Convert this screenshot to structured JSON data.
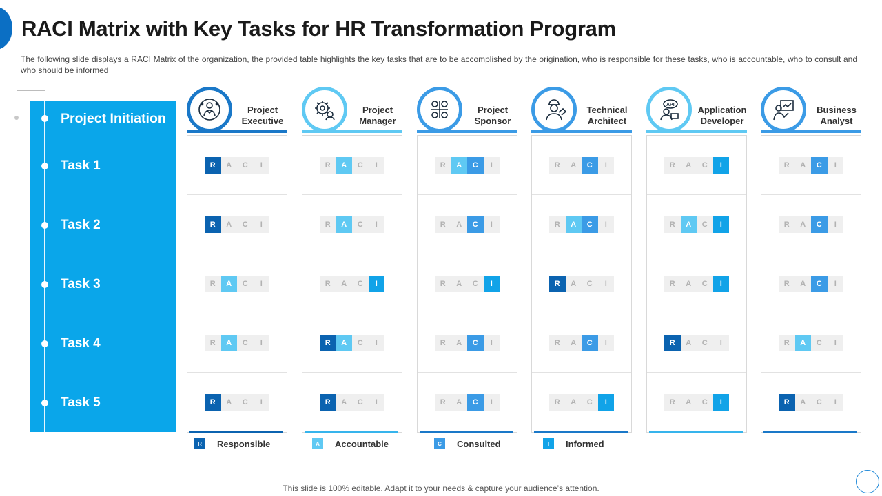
{
  "title": "RACI Matrix with Key Tasks for HR Transformation Program",
  "subtitle": "The following slide displays a RACI Matrix of the organization, the provided table highlights the key tasks that are to be accomplished by the origination, who is responsible for these tasks, who is accountable, who to consult and who should be informed",
  "tasks": {
    "header": "Project Initiation",
    "items": [
      "Task 1",
      "Task 2",
      "Task 3",
      "Task 4",
      "Task 5"
    ]
  },
  "raci_letters": [
    "R",
    "A",
    "C",
    "I"
  ],
  "colors": {
    "R": "#0b63b0",
    "A": "#5fc9f3",
    "C": "#3b9be6",
    "I": "#11a3e8",
    "panel": "#0aa6ea"
  },
  "roles": [
    {
      "name": "Project Executive",
      "line1": "Project",
      "line2": "Executive",
      "icon": "executive-icon",
      "accent": "#1a78c8",
      "bottom": "#0b63b0",
      "cells": [
        [
          "R"
        ],
        [
          "R"
        ],
        [
          "A"
        ],
        [
          "A"
        ],
        [
          "R"
        ]
      ]
    },
    {
      "name": "Project Manager",
      "line1": "Project",
      "line2": "Manager",
      "icon": "gear-person-icon",
      "accent": "#5fc9f3",
      "bottom": "#36b4ec",
      "cells": [
        [
          "A"
        ],
        [
          "A"
        ],
        [
          "I"
        ],
        [
          "R",
          "A"
        ],
        [
          "R"
        ]
      ]
    },
    {
      "name": "Project Sponsor",
      "line1": "Project",
      "line2": "Sponsor",
      "icon": "sponsor-icon",
      "accent": "#3b9be6",
      "bottom": "#1a78c8",
      "cells": [
        [
          "A",
          "C"
        ],
        [
          "C"
        ],
        [
          "I"
        ],
        [
          "C"
        ],
        [
          "C"
        ]
      ]
    },
    {
      "name": "Technical Architect",
      "line1": "Technical",
      "line2": "Architect",
      "icon": "architect-icon",
      "accent": "#3b9be6",
      "bottom": "#1a78c8",
      "cells": [
        [
          "C"
        ],
        [
          "A",
          "C"
        ],
        [
          "R"
        ],
        [
          "C"
        ],
        [
          "I"
        ]
      ]
    },
    {
      "name": "Application Developer",
      "line1": "Application",
      "line2": "Developer",
      "icon": "developer-icon",
      "accent": "#5fc9f3",
      "bottom": "#36b4ec",
      "cells": [
        [
          "I"
        ],
        [
          "A",
          "I"
        ],
        [
          "I"
        ],
        [
          "R"
        ],
        [
          "I"
        ]
      ]
    },
    {
      "name": "Business Analyst",
      "line1": "Business",
      "line2": "Analyst",
      "icon": "analyst-icon",
      "accent": "#3b9be6",
      "bottom": "#1a78c8",
      "cells": [
        [
          "C"
        ],
        [
          "C"
        ],
        [
          "C"
        ],
        [
          "A"
        ],
        [
          "R"
        ]
      ]
    }
  ],
  "legend": [
    {
      "key": "R",
      "label": "Responsible"
    },
    {
      "key": "A",
      "label": "Accountable"
    },
    {
      "key": "C",
      "label": "Consulted"
    },
    {
      "key": "I",
      "label": "Informed"
    }
  ],
  "footer": "This slide is 100% editable. Adapt it to your needs & capture your audience’s attention."
}
